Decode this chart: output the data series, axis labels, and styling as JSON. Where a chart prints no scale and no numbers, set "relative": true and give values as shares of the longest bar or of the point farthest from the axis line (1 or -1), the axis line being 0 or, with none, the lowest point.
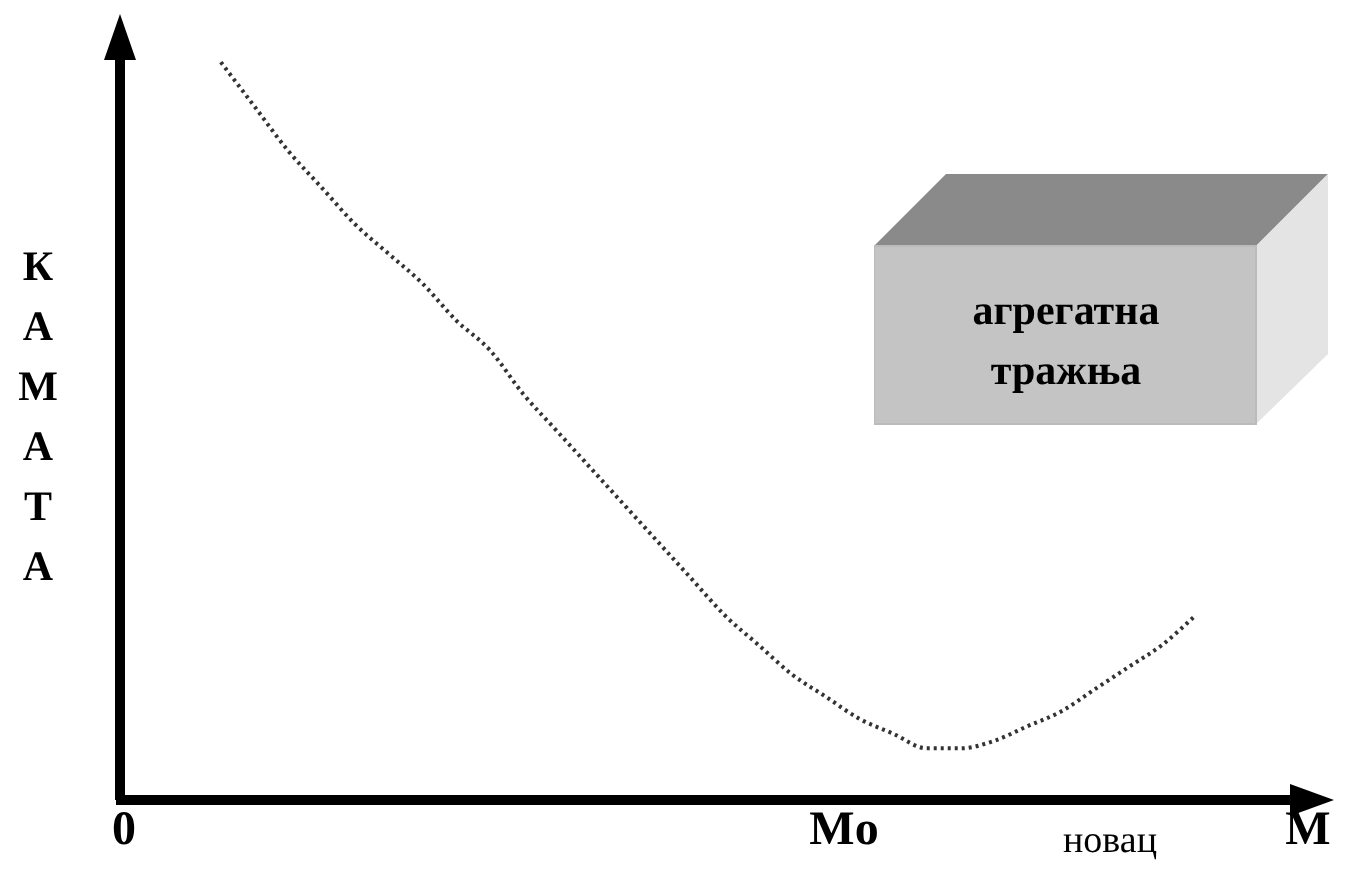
{
  "chart_data": {
    "type": "line",
    "relative": true,
    "xlabel": "новац",
    "ylabel": "КАМАТА",
    "annotations": [
      "0",
      "Mo",
      "M"
    ],
    "categories": [
      null,
      null,
      null,
      null,
      null,
      null,
      null,
      null,
      null,
      null,
      null,
      null,
      null,
      null,
      null,
      null,
      null,
      null,
      null,
      null,
      null,
      null,
      null,
      null,
      null,
      null,
      null,
      null,
      null,
      null,
      null,
      null,
      null,
      null,
      null,
      null,
      null
    ],
    "series": [
      {
        "name": "агрегатна тражња",
        "color": "#333333",
        "line_style": "dotted",
        "marker": "none",
        "values": [
          null,
          null,
          null,
          1,
          0.94,
          0.88,
          0.83,
          0.78,
          0.74,
          0.7,
          0.65,
          0.61,
          0.55,
          0.5,
          0.45,
          0.4,
          0.35,
          0.3,
          0.25,
          0.21,
          0.17,
          0.14,
          0.11,
          0.09,
          0.07,
          0.07,
          0.08,
          0.1,
          0.12,
          0.15,
          0.18,
          0.21,
          0.25,
          null,
          null,
          null,
          null
        ]
      }
    ]
  }
}
